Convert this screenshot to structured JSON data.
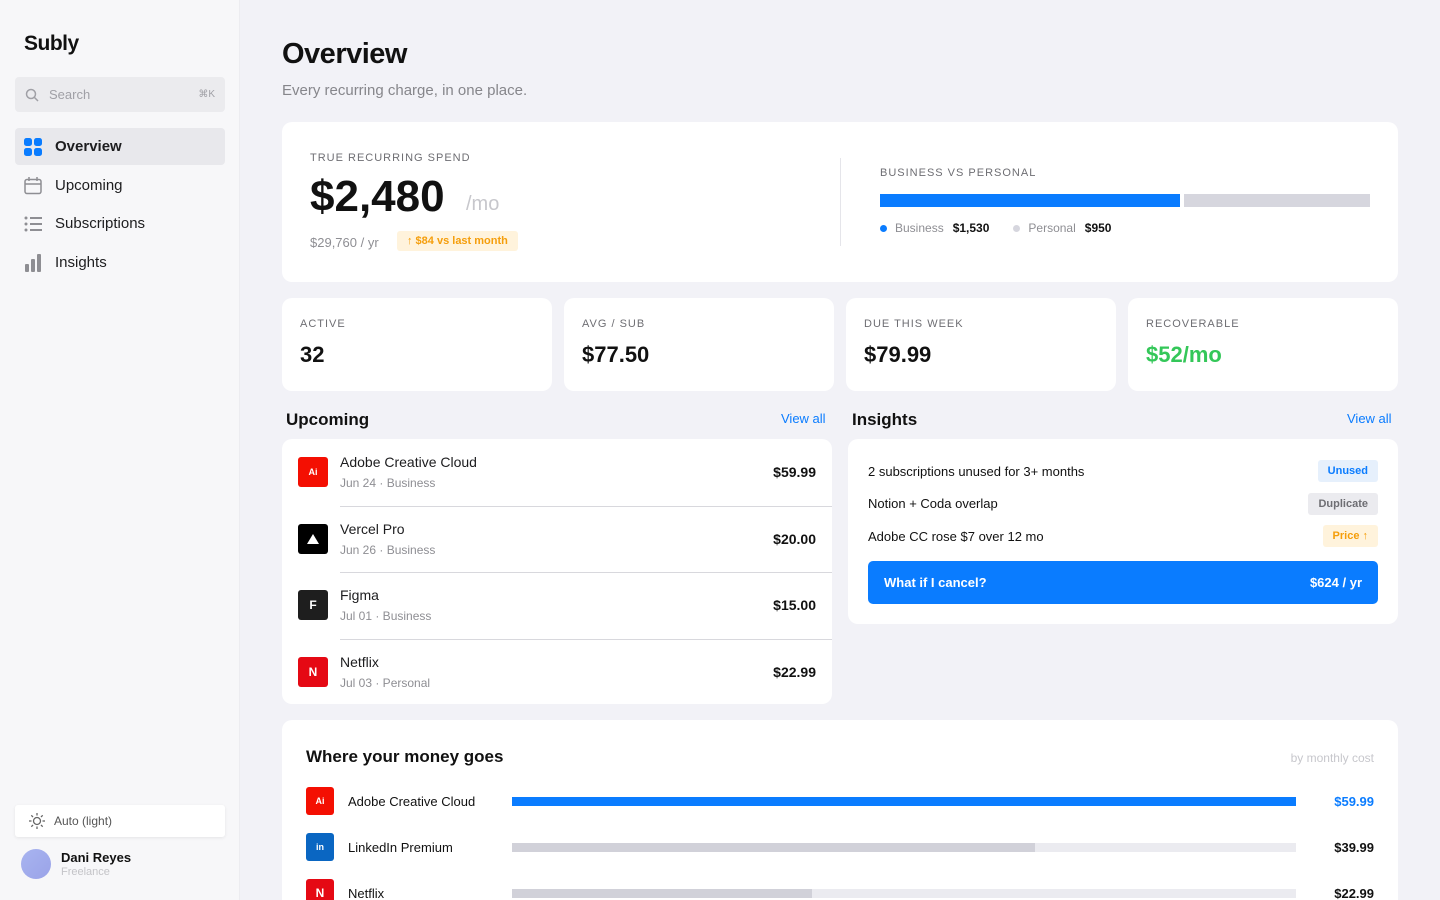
{
  "sidebar": {
    "brand": "Subly",
    "search": {
      "placeholder": "Search",
      "shortcut": "⌘K"
    },
    "nav": [
      "Overview",
      "Upcoming",
      "Subscriptions",
      "Insights"
    ],
    "theme": "Auto (light)",
    "user": {
      "name": "Dani Reyes",
      "role": "Freelance"
    }
  },
  "header": {
    "title": "Overview",
    "subtitle": "Every recurring charge, in one place."
  },
  "spend": {
    "label": "TRUE RECURRING SPEND",
    "amount": "$2,480",
    "unit": "/mo",
    "yearly": "$29,760 / yr",
    "change": "↑ $84 vs last month"
  },
  "split": {
    "label": "BUSINESS VS PERSONAL",
    "segments": [
      {
        "name": "Business",
        "value": 1530,
        "value_label": "$1,530",
        "color": "#0a7cff"
      },
      {
        "name": "Personal",
        "value": 950,
        "value_label": "$950",
        "color": "#d6d6de"
      }
    ]
  },
  "stats": [
    {
      "label": "ACTIVE",
      "value": "32"
    },
    {
      "label": "AVG / SUB",
      "value": "$77.50"
    },
    {
      "label": "DUE THIS WEEK",
      "value": "$79.99"
    },
    {
      "label": "RECOVERABLE",
      "value": "$52/mo",
      "color": "#34c759"
    }
  ],
  "upcoming": {
    "title": "Upcoming",
    "link": "View all",
    "items": [
      {
        "icon": "Ai",
        "name": "Adobe Creative Cloud",
        "meta": "Jun 24 · Business",
        "amount": "$59.99",
        "color": "#f40f02"
      },
      {
        "name": "Vercel Pro",
        "meta": "Jun 26 · Business",
        "amount": "$20.00",
        "color": "#000000"
      },
      {
        "icon": "F",
        "name": "Figma",
        "meta": "Jul 01 · Business",
        "amount": "$15.00",
        "color": "#1e1e1e"
      },
      {
        "icon": "N",
        "name": "Netflix",
        "meta": "Jul 03 · Personal",
        "amount": "$22.99",
        "color": "#e50914"
      }
    ]
  },
  "insights": {
    "title": "Insights",
    "link": "View all",
    "items": [
      {
        "text": "2 subscriptions unused for 3+ months",
        "tag": "Unused",
        "tag_color": "#0a7cff",
        "tag_bg": "#e6f0fc"
      },
      {
        "text": "Notion + Coda overlap",
        "tag": "Duplicate",
        "tag_color": "#6e6e73",
        "tag_bg": "#ebebef"
      },
      {
        "text": "Adobe CC rose $7 over 12 mo",
        "tag": "Price ↑",
        "tag_color": "#f59e0b",
        "tag_bg": "#fff3dc"
      }
    ],
    "cta": {
      "label": "What if I cancel?",
      "value": "$624 / yr"
    }
  },
  "money": {
    "title": "Where your money goes",
    "note": "by monthly cost",
    "items": [
      {
        "icon": "Ai",
        "name": "Adobe Creative Cloud",
        "value": 59.99,
        "value_label": "$59.99",
        "color": "#f40f02",
        "bar_color": "#0a7cff",
        "highlight": true
      },
      {
        "icon": "in",
        "name": "LinkedIn Premium",
        "value": 39.99,
        "value_label": "$39.99",
        "color": "#0a66c2",
        "bar_color": "#d1d1d9"
      },
      {
        "icon": "N",
        "name": "Netflix",
        "value": 22.99,
        "value_label": "$22.99",
        "color": "#e50914",
        "bar_color": "#d1d1d9"
      }
    ]
  }
}
